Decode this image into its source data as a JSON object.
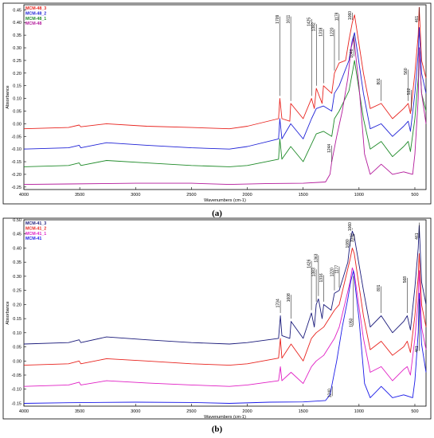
{
  "captions": {
    "a": "(a)",
    "b": "(b)"
  },
  "chart_data": [
    {
      "type": "line",
      "panel": "a",
      "xlabel": "Wavenumbers (cm-1)",
      "ylabel": "Absorbance",
      "xlim": [
        4000,
        400
      ],
      "ylim": [
        -0.26,
        0.47
      ],
      "x_reversed": true,
      "grid": false,
      "legend_placement": "top-left",
      "xticks": [
        4000,
        3500,
        3000,
        2500,
        2000,
        1500,
        1000,
        500
      ],
      "yticks": [
        0.45,
        0.4,
        0.35,
        0.3,
        0.25,
        0.2,
        0.15,
        0.1,
        0.05,
        0.0,
        -0.05,
        -0.1,
        -0.15,
        -0.2,
        -0.25
      ],
      "ytick_labels": [
        "0.45",
        "0.40",
        "0.35",
        "0.30",
        "0.25",
        "0.20",
        "0.15",
        "0.10",
        "0.05",
        "0.00",
        "-0.05",
        "-0.10",
        "-0.15",
        "-0.20",
        "-0.25"
      ],
      "series": [
        {
          "name": "MCM-48_3",
          "color": "#e8231e",
          "x": [
            4000,
            3600,
            3505,
            3490,
            3260,
            2900,
            2500,
            2160,
            2000,
            1720,
            1709,
            1690,
            1620,
            1611,
            1500,
            1425,
            1400,
            1382,
            1330,
            1318,
            1244,
            1220,
            1178,
            1120,
            1090,
            1060,
            1040,
            960,
            900,
            801,
            700,
            600,
            560,
            540,
            500,
            470,
            461,
            440,
            400
          ],
          "y": [
            -0.02,
            -0.015,
            -0.005,
            -0.012,
            0.0,
            -0.01,
            -0.015,
            -0.02,
            -0.01,
            0.02,
            0.1,
            0.02,
            0.01,
            0.08,
            0.02,
            0.1,
            0.06,
            0.14,
            0.08,
            0.15,
            0.12,
            0.2,
            0.24,
            0.25,
            0.33,
            0.4,
            0.43,
            0.2,
            0.06,
            0.08,
            0.02,
            0.06,
            0.08,
            0.04,
            0.2,
            0.35,
            0.46,
            0.25,
            0.18
          ]
        },
        {
          "name": "MCM-48_2",
          "color": "#1f22d6",
          "x": [
            4000,
            3600,
            3505,
            3490,
            3260,
            2900,
            2500,
            2160,
            2000,
            1720,
            1709,
            1690,
            1611,
            1500,
            1425,
            1382,
            1318,
            1244,
            1220,
            1178,
            1090,
            1060,
            1040,
            960,
            900,
            801,
            700,
            600,
            560,
            540,
            500,
            470,
            461,
            440,
            400
          ],
          "y": [
            -0.1,
            -0.095,
            -0.085,
            -0.095,
            -0.075,
            -0.085,
            -0.095,
            -0.1,
            -0.09,
            -0.06,
            0.02,
            -0.06,
            0.0,
            -0.06,
            0.02,
            0.06,
            0.07,
            0.05,
            0.12,
            0.15,
            0.25,
            0.33,
            0.36,
            0.12,
            -0.02,
            0.0,
            -0.05,
            -0.01,
            0.01,
            -0.03,
            0.12,
            0.28,
            0.38,
            0.2,
            0.12
          ]
        },
        {
          "name": "MCM-48_1",
          "color": "#1e8a28",
          "x": [
            4000,
            3600,
            3505,
            3490,
            3260,
            2900,
            2500,
            2160,
            2000,
            1720,
            1709,
            1690,
            1611,
            1500,
            1425,
            1382,
            1318,
            1244,
            1220,
            1178,
            1090,
            1060,
            1040,
            960,
            900,
            801,
            700,
            600,
            560,
            540,
            500,
            470,
            461,
            440,
            400
          ],
          "y": [
            -0.17,
            -0.165,
            -0.155,
            -0.165,
            -0.145,
            -0.155,
            -0.165,
            -0.17,
            -0.165,
            -0.14,
            -0.06,
            -0.14,
            -0.09,
            -0.15,
            -0.08,
            -0.04,
            -0.03,
            -0.05,
            0.02,
            0.05,
            0.13,
            0.2,
            0.25,
            0.02,
            -0.1,
            -0.07,
            -0.13,
            -0.09,
            -0.07,
            -0.11,
            0.02,
            0.18,
            0.3,
            0.12,
            0.05
          ]
        },
        {
          "name": "MCM-48",
          "color": "#b3199b",
          "x": [
            4000,
            3600,
            3000,
            2500,
            2160,
            1800,
            1500,
            1300,
            1260,
            1244,
            1200,
            1150,
            1100,
            1070,
            1046,
            1000,
            950,
            900,
            850,
            801,
            750,
            700,
            600,
            520,
            500,
            470,
            461,
            440,
            400
          ],
          "y": [
            -0.24,
            -0.238,
            -0.235,
            -0.235,
            -0.24,
            -0.236,
            -0.235,
            -0.23,
            -0.2,
            -0.15,
            -0.05,
            0.05,
            0.18,
            0.3,
            0.34,
            0.15,
            -0.12,
            -0.2,
            -0.18,
            -0.16,
            -0.18,
            -0.2,
            -0.19,
            -0.2,
            -0.12,
            0.1,
            0.3,
            0.12,
            0.0
          ]
        }
      ],
      "annotations": [
        {
          "text": "1709",
          "x": 1709,
          "label_y": 0.43,
          "tip_y": 0.11,
          "series": 0
        },
        {
          "text": "1611",
          "x": 1611,
          "label_y": 0.43,
          "tip_y": 0.09,
          "series": 0
        },
        {
          "text": "1425",
          "x": 1425,
          "label_y": 0.42,
          "tip_y": 0.11,
          "series": 0
        },
        {
          "text": "1382",
          "x": 1382,
          "label_y": 0.4,
          "tip_y": 0.15,
          "series": 0
        },
        {
          "text": "1318",
          "x": 1318,
          "label_y": 0.38,
          "tip_y": 0.16,
          "series": 0
        },
        {
          "text": "1220",
          "x": 1220,
          "label_y": 0.38,
          "tip_y": 0.21,
          "series": 0
        },
        {
          "text": "1178",
          "x": 1178,
          "label_y": 0.44,
          "tip_y": 0.25,
          "series": 0
        },
        {
          "text": "1060",
          "x": 1060,
          "label_y": 0.445,
          "tip_y": 0.41,
          "series": 0
        },
        {
          "text": "1046",
          "x": 1046,
          "label_y": 0.26,
          "tip_y": 0.35,
          "series": 3
        },
        {
          "text": "801",
          "x": 801,
          "label_y": 0.18,
          "tip_y": 0.09,
          "series": 0
        },
        {
          "text": "560",
          "x": 560,
          "label_y": 0.22,
          "tip_y": 0.09,
          "series": 0
        },
        {
          "text": "532",
          "x": 532,
          "label_y": 0.14,
          "tip_y": 0.05,
          "series": 0
        },
        {
          "text": "461",
          "x": 461,
          "label_y": 0.4,
          "tip_y": 0.46,
          "series": 0
        },
        {
          "text": "1244",
          "x": 1244,
          "label_y": -0.08,
          "tip_y": -0.15,
          "series": 3
        }
      ]
    },
    {
      "type": "line",
      "panel": "b",
      "xlabel": "Wavenumbers (cm-1)",
      "ylabel": "Absorbance",
      "xlim": [
        4000,
        400
      ],
      "ylim": [
        -0.16,
        0.5
      ],
      "x_reversed": true,
      "grid": false,
      "legend_placement": "top-left",
      "xticks": [
        4000,
        3500,
        3000,
        2500,
        2000,
        1500,
        1000,
        500
      ],
      "yticks": [
        0.5,
        0.45,
        0.4,
        0.35,
        0.3,
        0.25,
        0.2,
        0.15,
        0.1,
        0.05,
        0.0,
        -0.05,
        -0.1,
        -0.15
      ],
      "ytick_labels": [
        "0.50",
        "0.45",
        "0.40",
        "0.35",
        "0.30",
        "0.25",
        "0.20",
        "0.15",
        "0.10",
        "0.05",
        "0.00",
        "-0.05",
        "-0.10",
        "-0.15"
      ],
      "series": [
        {
          "name": "MCM-41_3",
          "color": "#1a1a7a",
          "x": [
            4000,
            3600,
            3505,
            3490,
            3260,
            2900,
            2500,
            2160,
            2000,
            1720,
            1704,
            1690,
            1620,
            1608,
            1500,
            1426,
            1400,
            1383,
            1363,
            1330,
            1316,
            1250,
            1220,
            1177,
            1100,
            1080,
            1060,
            1042,
            960,
            900,
            801,
            700,
            600,
            568,
            540,
            500,
            470,
            461,
            440,
            400
          ],
          "y": [
            0.06,
            0.065,
            0.075,
            0.065,
            0.085,
            0.075,
            0.065,
            0.06,
            0.065,
            0.08,
            0.16,
            0.09,
            0.08,
            0.14,
            0.08,
            0.17,
            0.12,
            0.2,
            0.22,
            0.15,
            0.2,
            0.18,
            0.24,
            0.25,
            0.35,
            0.42,
            0.46,
            0.44,
            0.25,
            0.12,
            0.16,
            0.1,
            0.14,
            0.16,
            0.11,
            0.26,
            0.4,
            0.48,
            0.28,
            0.2
          ]
        },
        {
          "name": "MCM-41_2",
          "color": "#e8231e",
          "x": [
            4000,
            3600,
            3505,
            3490,
            3260,
            2900,
            2500,
            2160,
            2000,
            1720,
            1704,
            1690,
            1608,
            1500,
            1426,
            1383,
            1316,
            1220,
            1177,
            1080,
            1060,
            1042,
            960,
            900,
            801,
            700,
            600,
            568,
            540,
            500,
            470,
            461,
            440,
            400
          ],
          "y": [
            -0.015,
            -0.01,
            0.0,
            -0.01,
            0.008,
            0.0,
            -0.01,
            -0.015,
            -0.01,
            0.01,
            0.08,
            0.01,
            0.06,
            0.0,
            0.08,
            0.1,
            0.12,
            0.18,
            0.2,
            0.36,
            0.4,
            0.38,
            0.16,
            0.04,
            0.07,
            0.02,
            0.05,
            0.07,
            0.03,
            0.16,
            0.3,
            0.38,
            0.2,
            0.12
          ]
        },
        {
          "name": "MCM-41_1",
          "color": "#e01ec4",
          "x": [
            4000,
            3600,
            3505,
            3490,
            3260,
            2900,
            2500,
            2160,
            2000,
            1720,
            1704,
            1690,
            1608,
            1500,
            1426,
            1383,
            1316,
            1220,
            1177,
            1080,
            1060,
            1042,
            960,
            900,
            801,
            700,
            600,
            568,
            540,
            500,
            470,
            461,
            440,
            400
          ],
          "y": [
            -0.09,
            -0.085,
            -0.075,
            -0.085,
            -0.07,
            -0.078,
            -0.085,
            -0.09,
            -0.085,
            -0.07,
            -0.02,
            -0.07,
            -0.04,
            -0.08,
            -0.02,
            0.0,
            0.02,
            0.08,
            0.12,
            0.28,
            0.33,
            0.31,
            0.08,
            -0.04,
            -0.02,
            -0.07,
            -0.03,
            -0.02,
            -0.05,
            0.08,
            0.22,
            0.32,
            0.12,
            0.04
          ]
        },
        {
          "name": "MCM-41",
          "color": "#1a1ae8",
          "x": [
            4000,
            3600,
            3000,
            2500,
            2160,
            1800,
            1500,
            1300,
            1260,
            1240,
            1200,
            1150,
            1100,
            1075,
            1050,
            1000,
            950,
            900,
            850,
            801,
            750,
            700,
            600,
            520,
            500,
            470,
            461,
            440,
            400
          ],
          "y": [
            -0.15,
            -0.148,
            -0.146,
            -0.147,
            -0.15,
            -0.146,
            -0.145,
            -0.14,
            -0.12,
            -0.08,
            0.0,
            0.12,
            0.22,
            0.28,
            0.32,
            0.15,
            -0.08,
            -0.13,
            -0.11,
            -0.09,
            -0.11,
            -0.13,
            -0.12,
            -0.13,
            -0.07,
            0.1,
            0.24,
            0.06,
            -0.04
          ]
        }
      ],
      "annotations": [
        {
          "text": "1704",
          "x": 1704,
          "label_y": 0.22,
          "tip_y": 0.17,
          "series": 0
        },
        {
          "text": "1608",
          "x": 1608,
          "label_y": 0.24,
          "tip_y": 0.15,
          "series": 0
        },
        {
          "text": "1426",
          "x": 1426,
          "label_y": 0.36,
          "tip_y": 0.18,
          "series": 0
        },
        {
          "text": "1383",
          "x": 1383,
          "label_y": 0.33,
          "tip_y": 0.21,
          "series": 0
        },
        {
          "text": "1363",
          "x": 1363,
          "label_y": 0.38,
          "tip_y": 0.23,
          "series": 0
        },
        {
          "text": "1316",
          "x": 1316,
          "label_y": 0.31,
          "tip_y": 0.21,
          "series": 0
        },
        {
          "text": "1220",
          "x": 1220,
          "label_y": 0.33,
          "tip_y": 0.25,
          "series": 0
        },
        {
          "text": "1177",
          "x": 1177,
          "label_y": 0.34,
          "tip_y": 0.26,
          "series": 0
        },
        {
          "text": "1080",
          "x": 1080,
          "label_y": 0.4,
          "tip_y": 0.43,
          "series": 0
        },
        {
          "text": "1060",
          "x": 1060,
          "label_y": 0.46,
          "tip_y": 0.47,
          "series": 0
        },
        {
          "text": "1042",
          "x": 1042,
          "label_y": 0.42,
          "tip_y": 0.45,
          "series": 0
        },
        {
          "text": "1050",
          "x": 1050,
          "label_y": 0.12,
          "tip_y": 0.3,
          "series": 3
        },
        {
          "text": "801",
          "x": 801,
          "label_y": 0.27,
          "tip_y": 0.17,
          "series": 0
        },
        {
          "text": "568",
          "x": 568,
          "label_y": 0.3,
          "tip_y": 0.17,
          "series": 0
        },
        {
          "text": "461",
          "x": 461,
          "label_y": 0.43,
          "tip_y": 0.49,
          "series": 0
        },
        {
          "text": "1240",
          "x": 1240,
          "label_y": -0.13,
          "tip_y": -0.09,
          "series": 3
        },
        {
          "text": "461",
          "x": 461,
          "label_y": 0.03,
          "tip_y": 0.22,
          "series": 3
        }
      ]
    }
  ]
}
